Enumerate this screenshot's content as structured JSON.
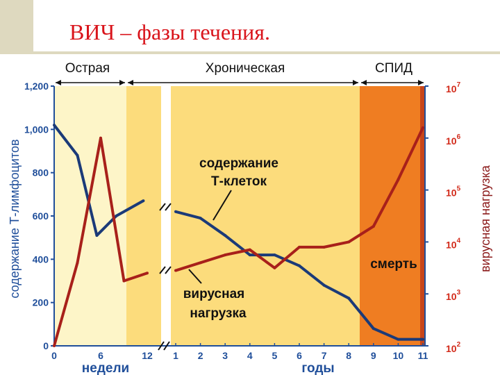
{
  "slide": {
    "title": "ВИЧ – фазы течения."
  },
  "colors": {
    "acute_bg": "#fdf5c8",
    "phase_bg": "#fcdc7c",
    "aids_bg": "#ef7d22",
    "aids_edge": "#c8461a",
    "tcell_line": "#1b3a78",
    "viral_line": "#a8201a",
    "left_axis": "#1f4e9a",
    "right_axis": "#d22a1a"
  },
  "chart_data": {
    "type": "line",
    "phases": [
      "Острая",
      "Хроническая",
      "СПИД"
    ],
    "annotations": {
      "tcells": [
        "содержание",
        "Т-клеток"
      ],
      "viral": [
        "вирусная",
        "нагрузка"
      ],
      "death": "смерть"
    },
    "ylabel_left": "содержание Т-лимфоцитов",
    "ylabel_right": "вирусная нагрузка",
    "yticks_left": [
      "0",
      "200",
      "400",
      "600",
      "800",
      "1,000",
      "1,200"
    ],
    "ylim_left": [
      0,
      1200
    ],
    "yticks_right": [
      {
        "base": "10",
        "exp": "2"
      },
      {
        "base": "10",
        "exp": "3"
      },
      {
        "base": "10",
        "exp": "4"
      },
      {
        "base": "10",
        "exp": "5"
      },
      {
        "base": "10",
        "exp": "6"
      },
      {
        "base": "10",
        "exp": "7"
      }
    ],
    "ylim_right_log10": [
      2,
      7
    ],
    "x_weeks": {
      "label": "недели",
      "ticks": [
        "0",
        "6",
        "12"
      ],
      "ticks_values": [
        0,
        6,
        12
      ],
      "range": [
        0,
        12
      ]
    },
    "x_years": {
      "label": "годы",
      "ticks": [
        "1",
        "2",
        "3",
        "4",
        "5",
        "6",
        "7",
        "8",
        "9",
        "10",
        "11"
      ],
      "ticks_values": [
        1,
        2,
        3,
        4,
        5,
        6,
        7,
        8,
        9,
        10,
        11
      ],
      "range": [
        1,
        11
      ]
    },
    "series": [
      {
        "label": "tcells",
        "weeks": {
          "x": [
            0,
            3,
            5.5,
            8,
            11.5
          ],
          "y": [
            1020,
            880,
            510,
            600,
            670
          ]
        },
        "years": {
          "x": [
            1,
            2,
            3,
            4,
            5,
            6,
            7,
            8,
            9,
            10,
            11
          ],
          "y": [
            620,
            590,
            510,
            420,
            420,
            370,
            280,
            220,
            80,
            30,
            30
          ]
        }
      },
      {
        "label": "viral",
        "weeks": {
          "x": [
            0,
            3,
            6,
            9,
            12
          ],
          "log10_y": [
            2.0,
            3.6,
            6.0,
            3.25,
            3.4
          ]
        },
        "years": {
          "x": [
            1,
            2,
            3,
            4,
            5,
            6,
            7,
            8,
            9,
            10,
            11
          ],
          "log10_y": [
            3.45,
            3.6,
            3.75,
            3.85,
            3.5,
            3.9,
            3.9,
            4.0,
            4.3,
            5.2,
            6.2
          ]
        }
      }
    ]
  }
}
